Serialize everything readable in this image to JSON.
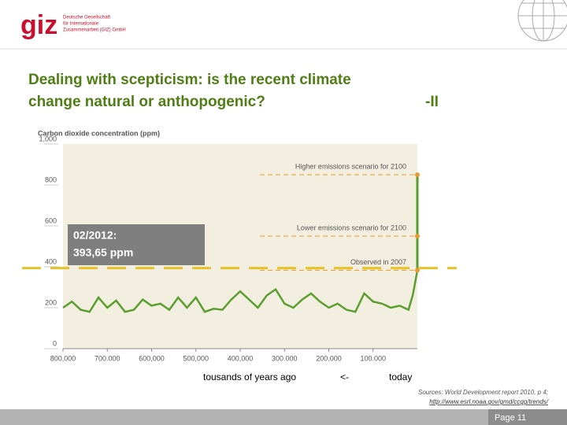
{
  "logo": {
    "mark": "giz",
    "lines": [
      "Deutsche Gesellschaft",
      "für Internationale",
      "Zusammenarbeit (GIZ) GmbH"
    ]
  },
  "title_lines": [
    "Dealing with scepticism: is the recent climate",
    "change natural or anthopogenic?"
  ],
  "title_suffix": "-II",
  "chart_data": {
    "type": "line",
    "y_label": "Carbon dioxide concentration (ppm)",
    "x": [
      800000,
      780000,
      760000,
      740000,
      720000,
      700000,
      680000,
      660000,
      640000,
      620000,
      600000,
      580000,
      560000,
      540000,
      520000,
      500000,
      480000,
      460000,
      440000,
      420000,
      400000,
      380000,
      360000,
      340000,
      320000,
      300000,
      280000,
      260000,
      240000,
      220000,
      200000,
      180000,
      160000,
      140000,
      120000,
      100000,
      80000,
      60000,
      40000,
      20000,
      10000,
      0
    ],
    "series": [
      {
        "name": "CO2",
        "color": "#5a9e2f",
        "values": [
          200,
          230,
          190,
          180,
          250,
          200,
          235,
          180,
          190,
          240,
          210,
          220,
          190,
          250,
          200,
          250,
          180,
          195,
          190,
          240,
          280,
          240,
          200,
          260,
          290,
          220,
          200,
          240,
          270,
          230,
          200,
          220,
          190,
          180,
          270,
          230,
          220,
          200,
          210,
          190,
          265,
          383
        ]
      }
    ],
    "xlim": [
      800000,
      0
    ],
    "xticks": [
      {
        "value": 800000,
        "label": "800,000"
      },
      {
        "value": 700000,
        "label": "700.000"
      },
      {
        "value": 600000,
        "label": "600,000"
      },
      {
        "value": 500000,
        "label": "500,000"
      },
      {
        "value": 400000,
        "label": "400,000"
      },
      {
        "value": 300000,
        "label": "300.000"
      },
      {
        "value": 200000,
        "label": "200.000"
      },
      {
        "value": 100000,
        "label": "100.000"
      }
    ],
    "ylim": [
      0,
      1000
    ],
    "yticks": [
      0,
      200,
      400,
      600,
      800,
      {
        "value": 1000,
        "label": "1,000"
      }
    ],
    "annotations": [
      {
        "text": "Higher emissions scenario for 2100",
        "value": 850
      },
      {
        "text": "Lower emissions scenario for 2100",
        "value": 550
      },
      {
        "text": "Observed in 2007",
        "value": 383
      }
    ],
    "scenario_color": "#5a9e2f",
    "reference": {
      "lines": [
        "02/2012:",
        "393,65 ppm"
      ],
      "value": 393.65,
      "color": "#e6c229"
    }
  },
  "x_caption": "tousands of years ago",
  "arrow": "<-",
  "today": "today",
  "sources": [
    "Sources: World Development report 2010, p 4;",
    "http://www.esrl.noaa.gov/gmd/ccgg/trends/"
  ],
  "page": "Page 11"
}
